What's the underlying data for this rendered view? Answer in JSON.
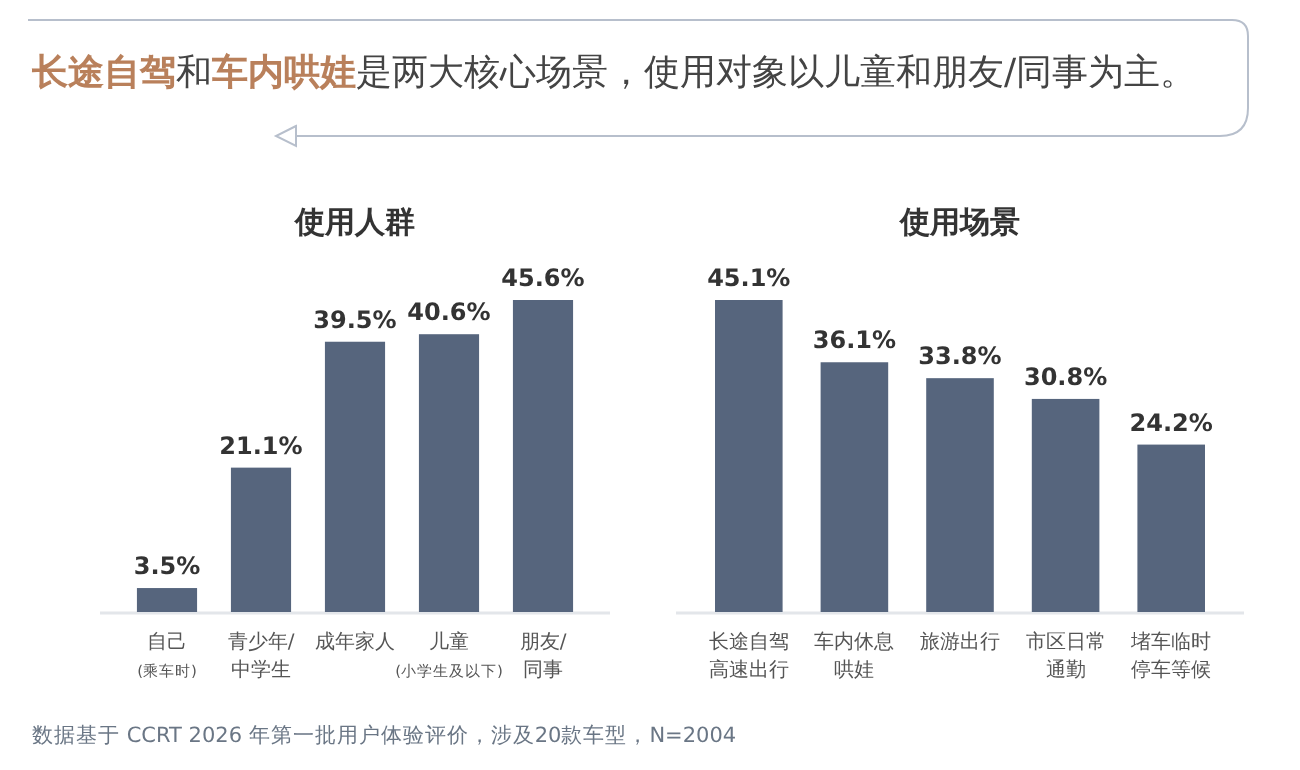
{
  "chart_data": [
    {
      "type": "bar",
      "title": "使用人群",
      "categories": [
        "自己$_{(乘车时)}$",
        "青少年/中学生",
        "成年家人",
        "儿童$_{(小学生及以下)}$",
        "朋友/同事"
      ],
      "values": [
        3.5,
        21.1,
        39.5,
        40.6,
        45.6
      ],
      "value_labels": [
        "3.5%",
        "21.1%",
        "39.5%",
        "40.6%",
        "45.6%"
      ],
      "color": "#56657d",
      "annotations": [
        "**长途自驾**和**车内哄娃**是两大核心场景，使用对象以儿童和朋友/同事为主。",
        "数据基于 CCRT 2026 年第一批用户体验评价，涉及20款车型，N=2004"
      ]
    },
    {
      "type": "bar",
      "title": "使用场景",
      "categories": [
        "长途自驾高速出行",
        "车内休息哄娃",
        "旅游出行",
        "市区日常通勤",
        "堵车临时停车等候"
      ],
      "values": [
        45.1,
        36.1,
        33.8,
        30.8,
        24.2
      ],
      "value_labels": [
        "45.1%",
        "36.1%",
        "33.8%",
        "30.8%",
        "24.2%"
      ],
      "color": "#56657d"
    }
  ]
}
